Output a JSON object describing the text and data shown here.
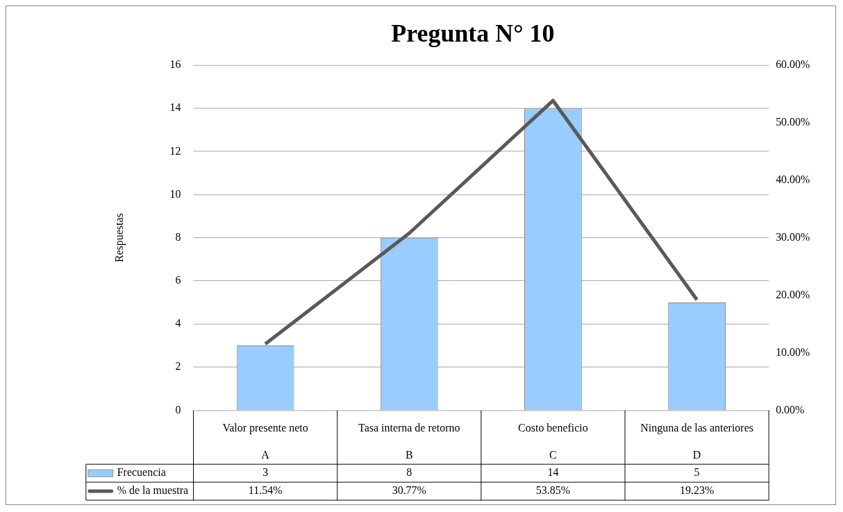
{
  "chart_data": {
    "type": "bar",
    "title": "Pregunta N° 10",
    "ylabel": "Respuestas",
    "categories": [
      "Valor presente neto\nA",
      "Tasa interna de retorno\nB",
      "Costo beneficio\nC",
      "Ninguna de las anteriores\nD"
    ],
    "series": [
      {
        "name": "Frecuencia",
        "color": "#99ccff",
        "values": [
          3,
          8,
          14,
          5
        ],
        "value_labels": [
          "3",
          "8",
          "14",
          "5"
        ]
      },
      {
        "name": "% de la muestra",
        "type": "line",
        "axis": "y2",
        "color": "#595959",
        "values": [
          11.54,
          30.77,
          53.85,
          19.23
        ],
        "value_labels": [
          "11.54%",
          "30.77%",
          "53.85%",
          "19.23%"
        ]
      }
    ],
    "ylim": [
      0,
      16
    ],
    "yticks": [
      0,
      2,
      4,
      6,
      8,
      10,
      12,
      14,
      16
    ],
    "y2lim": [
      0,
      60
    ],
    "y2ticks": [
      {
        "value": 0,
        "label": "0.00%"
      },
      {
        "value": 10,
        "label": "10.00%"
      },
      {
        "value": 20,
        "label": "20.00%"
      },
      {
        "value": 30,
        "label": "30.00%"
      },
      {
        "value": 40,
        "label": "40.00%"
      },
      {
        "value": 50,
        "label": "50.00%"
      },
      {
        "value": 60,
        "label": "60.00%"
      }
    ],
    "grid": "y",
    "legend": "bottom",
    "marker": "none",
    "line_style": "solid"
  }
}
